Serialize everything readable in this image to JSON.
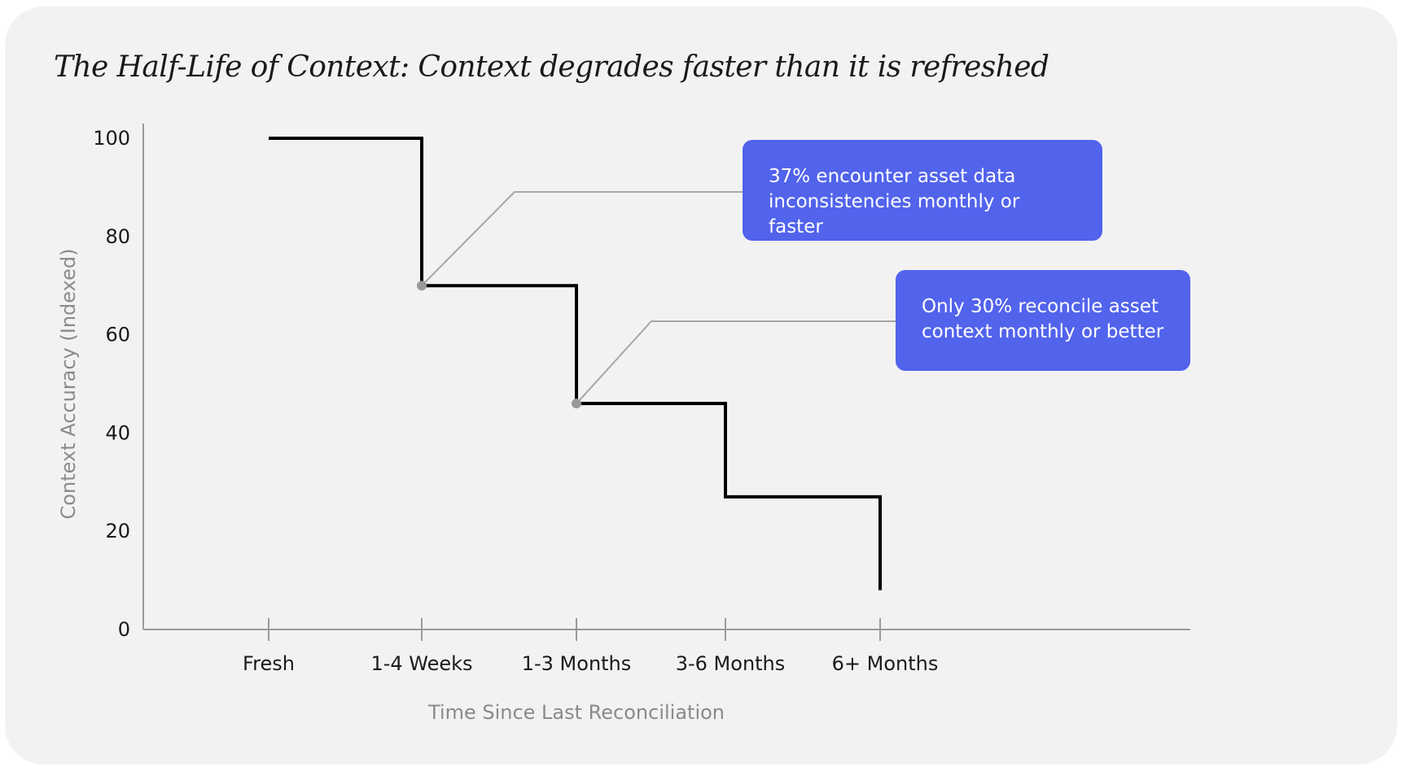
{
  "chart_data": {
    "type": "line",
    "step": true,
    "title": "The Half-Life of Context: Context degrades faster than it is refreshed",
    "xlabel": "Time Since Last Reconciliation",
    "ylabel": "Context Accuracy (Indexed)",
    "ylim": [
      0,
      100
    ],
    "yticks": [
      0,
      20,
      40,
      60,
      80,
      100
    ],
    "categories": [
      "Fresh",
      "1-4 Weeks",
      "1-3 Months",
      "3-6 Months",
      "6+ Months"
    ],
    "values": [
      100,
      70,
      46,
      27,
      8
    ],
    "grid": false,
    "legend": "none",
    "line_color": "#000000",
    "annotations": [
      {
        "text": "37% encounter asset data inconsistencies monthly or faster",
        "category": "1-4 Weeks",
        "value": 70,
        "color": "#5263ec"
      },
      {
        "text": "Only 30% reconcile asset context monthly or better",
        "category": "1-3 Months",
        "value": 46,
        "color": "#5263ec"
      }
    ]
  }
}
